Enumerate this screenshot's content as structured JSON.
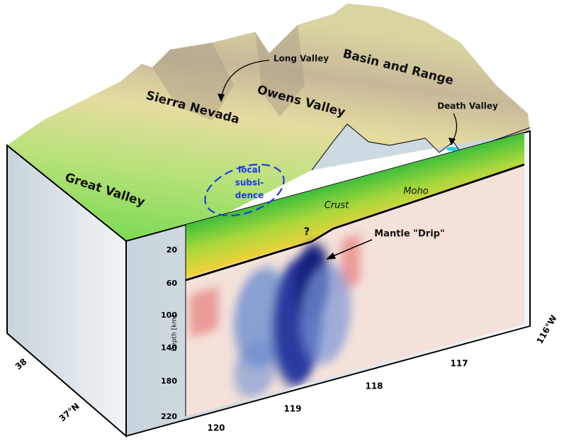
{
  "labels": {
    "basin_and_range": "Basin and Range",
    "long_valley": "Long Valley",
    "sierra_nevada": "Sierra Nevada",
    "owens_valley": "Owens Valley",
    "death_valley": "Death Valley",
    "great_valley": "Great Valley",
    "local_subsidence": [
      "local",
      "subsi-",
      "dence"
    ],
    "crust": "Crust",
    "moho": "Moho",
    "question": "?",
    "mantle_drip": "Mantle \"Drip\""
  },
  "depth_axis": {
    "label": "Depth [km]",
    "ticks": [
      20,
      60,
      100,
      140,
      180,
      220
    ]
  },
  "longitude_ticks": [
    "120",
    "119",
    "118",
    "117",
    "116°W"
  ],
  "latitude_ticks": [
    "38",
    "37°N"
  ]
}
